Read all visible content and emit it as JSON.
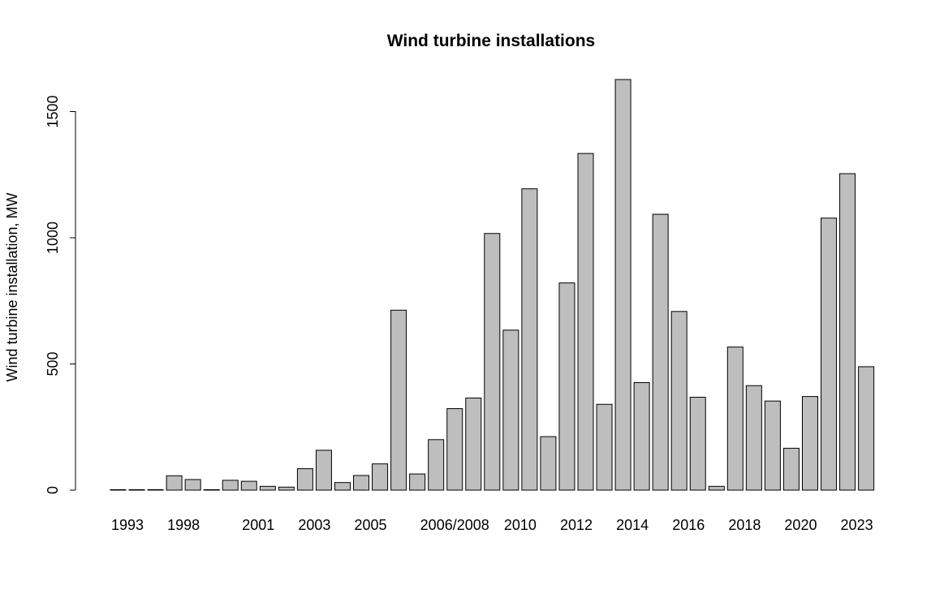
{
  "chart_data": {
    "type": "bar",
    "title": "Wind turbine installations",
    "xlabel": "",
    "ylabel": "Wind turbine installation, MW",
    "ylim": [
      0,
      1650
    ],
    "y_ticks": [
      0,
      500,
      1000,
      1500
    ],
    "grid": false,
    "legend": "none",
    "bar_color": "#bebebe",
    "bar_border_color": "#000000",
    "values": [
      1,
      1,
      2,
      57,
      42,
      1,
      39,
      35,
      15,
      12,
      85,
      158,
      30,
      58,
      104,
      713,
      64,
      200,
      323,
      365,
      1017,
      634,
      1194,
      212,
      821,
      1334,
      340,
      1627,
      426,
      1093,
      708,
      368,
      15,
      567,
      414,
      353,
      166,
      371,
      1078,
      1254,
      489
    ],
    "category_labels": [
      {
        "bar_index": 0.5,
        "label": "1993"
      },
      {
        "bar_index": 3.5,
        "label": "1998"
      },
      {
        "bar_index": 7.5,
        "label": "2001"
      },
      {
        "bar_index": 10.5,
        "label": "2003"
      },
      {
        "bar_index": 13.5,
        "label": "2005"
      },
      {
        "bar_index": 18,
        "label": "2006/2008"
      },
      {
        "bar_index": 21.5,
        "label": "2010"
      },
      {
        "bar_index": 24.5,
        "label": "2012"
      },
      {
        "bar_index": 27.5,
        "label": "2014"
      },
      {
        "bar_index": 30.5,
        "label": "2016"
      },
      {
        "bar_index": 33.5,
        "label": "2018"
      },
      {
        "bar_index": 36.5,
        "label": "2020"
      },
      {
        "bar_index": 39.5,
        "label": "2023"
      }
    ]
  }
}
